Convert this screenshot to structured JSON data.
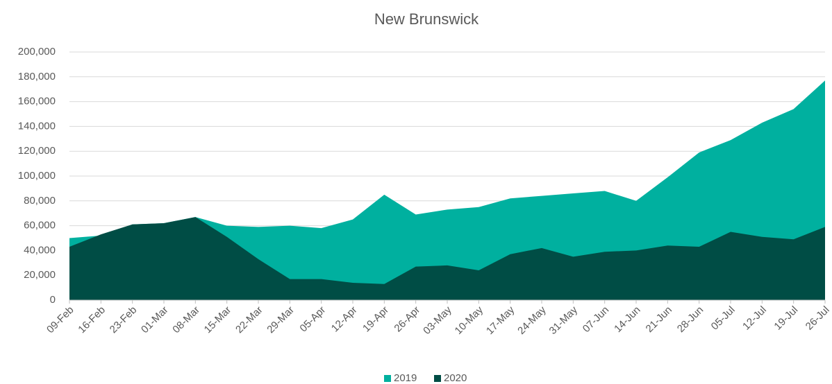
{
  "chart_data": {
    "type": "area",
    "title": "New Brunswick",
    "categories": [
      "09-Feb",
      "16-Feb",
      "23-Feb",
      "01-Mar",
      "08-Mar",
      "15-Mar",
      "22-Mar",
      "29-Mar",
      "05-Apr",
      "12-Apr",
      "19-Apr",
      "26-Apr",
      "03-May",
      "10-May",
      "17-May",
      "24-May",
      "31-May",
      "07-Jun",
      "14-Jun",
      "21-Jun",
      "28-Jun",
      "05-Jul",
      "12-Jul",
      "19-Jul",
      "26-Jul"
    ],
    "series": [
      {
        "name": "2019",
        "color": "#00b09f",
        "values": [
          50000,
          52000,
          61000,
          62000,
          67000,
          60000,
          59000,
          60000,
          58000,
          65000,
          85000,
          69000,
          73000,
          75000,
          82000,
          84000,
          86000,
          88000,
          80000,
          99000,
          119000,
          129000,
          143000,
          154000,
          177000
        ]
      },
      {
        "name": "2020",
        "color": "#004d45",
        "values": [
          43000,
          53000,
          61000,
          62000,
          67000,
          51000,
          33000,
          17000,
          17000,
          14000,
          13000,
          27000,
          28000,
          24000,
          37000,
          42000,
          35000,
          39000,
          40000,
          44000,
          43000,
          55000,
          51000,
          49000,
          59000
        ]
      }
    ],
    "ylim": [
      0,
      200000
    ],
    "yticks": [
      0,
      {
        "value": 20000,
        "label": "20,000"
      },
      {
        "value": 40000,
        "label": "40,000"
      },
      {
        "value": 60000,
        "label": "60,000"
      },
      {
        "value": 80000,
        "label": "80,000"
      },
      {
        "value": 100000,
        "label": "100,000"
      },
      {
        "value": 120000,
        "label": "120,000"
      },
      {
        "value": 140000,
        "label": "140,000"
      },
      {
        "value": 160000,
        "label": "160,000"
      },
      {
        "value": 180000,
        "label": "180,000"
      },
      {
        "value": 200000,
        "label": "200,000"
      }
    ],
    "grid": true,
    "legend": "bottom"
  }
}
